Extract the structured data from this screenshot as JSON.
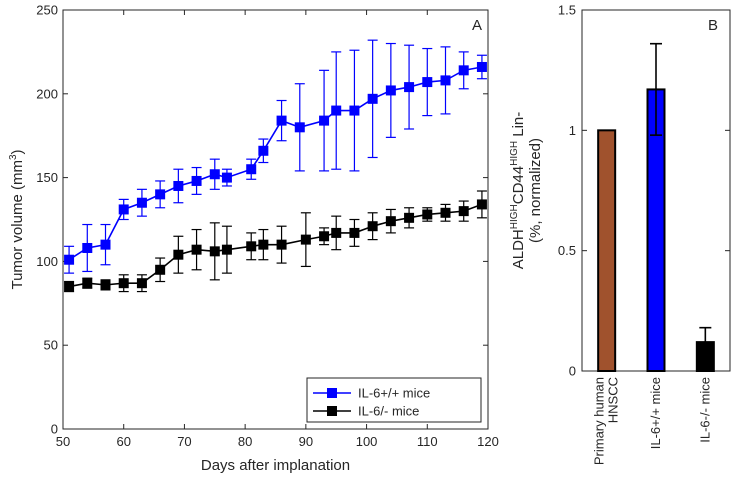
{
  "chart_data": [
    {
      "type": "line",
      "panel_label": "A",
      "xlabel": "Days after implanation",
      "ylabel": "Tumor volume (mm",
      "ylabel_superscript": "3",
      "ylabel_suffix": ")",
      "xlim": [
        50,
        120
      ],
      "ylim": [
        0,
        250
      ],
      "xticks": [
        50,
        60,
        70,
        80,
        90,
        100,
        110,
        120
      ],
      "yticks": [
        0,
        50,
        100,
        150,
        200,
        250
      ],
      "grid": false,
      "legend_position": "bottom-right",
      "series": [
        {
          "name": "IL-6+/+ mice",
          "color": "#0000ff",
          "marker": "square",
          "x": [
            51,
            54,
            57,
            60,
            63,
            66,
            69,
            72,
            75,
            77,
            81,
            83,
            86,
            89,
            93,
            95,
            98,
            101,
            104,
            107,
            110,
            113,
            116,
            119
          ],
          "y": [
            101,
            108,
            110,
            131,
            135,
            140,
            145,
            148,
            152,
            150,
            155,
            166,
            184,
            180,
            184,
            190,
            190,
            197,
            202,
            204,
            207,
            208,
            214,
            216
          ],
          "err": [
            8,
            14,
            12,
            6,
            8,
            8,
            10,
            8,
            9,
            5,
            6,
            7,
            12,
            26,
            30,
            35,
            36,
            35,
            28,
            25,
            20,
            20,
            11,
            7
          ]
        },
        {
          "name": "IL-6/- mice",
          "color": "#000000",
          "marker": "square",
          "x": [
            51,
            54,
            57,
            60,
            63,
            66,
            69,
            72,
            75,
            77,
            81,
            83,
            86,
            90,
            93,
            95,
            98,
            101,
            104,
            107,
            110,
            113,
            116,
            119
          ],
          "y": [
            85,
            87,
            86,
            87,
            87,
            95,
            104,
            107,
            106,
            107,
            109,
            110,
            110,
            113,
            115,
            117,
            117,
            121,
            124,
            126,
            128,
            129,
            130,
            134
          ],
          "err": [
            3,
            3,
            3,
            5,
            5,
            7,
            11,
            12,
            17,
            14,
            8,
            9,
            11,
            16,
            5,
            10,
            8,
            8,
            7,
            6,
            4,
            5,
            6,
            8
          ]
        }
      ]
    },
    {
      "type": "bar",
      "panel_label": "B",
      "ylabel_line1_parts": [
        "ALDH",
        "HIGH",
        "CD44",
        "HIGH",
        "Lin-"
      ],
      "ylabel_line2": "(%, normalized)",
      "ylim": [
        0,
        1.5
      ],
      "yticks": [
        0,
        0.5,
        1,
        1.5
      ],
      "grid": false,
      "categories": [
        [
          "Primary human",
          "HNSCC"
        ],
        [
          "IL-6+/+ mice"
        ],
        [
          "IL-6-/- mice"
        ]
      ],
      "values": [
        1.0,
        1.17,
        0.12
      ],
      "err": [
        0,
        0.19,
        0.06
      ],
      "colors": [
        "#a0522d",
        "#0000ff",
        "#000000"
      ]
    }
  ]
}
